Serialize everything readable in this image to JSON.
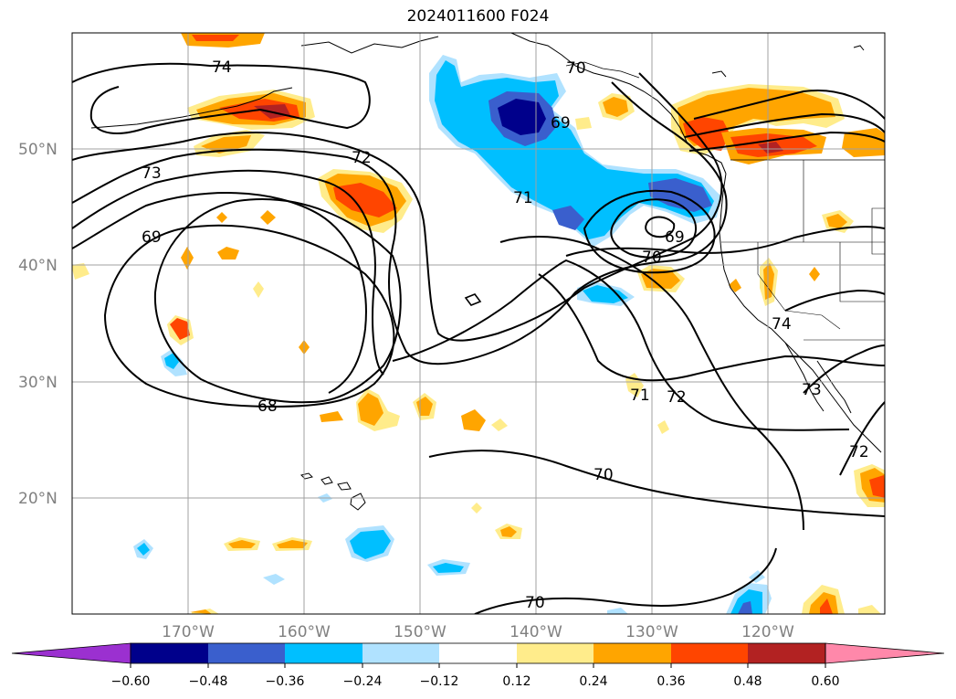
{
  "title": "2024011600 F024",
  "axes": {
    "lat_labels": [
      "50°N",
      "40°N",
      "30°N",
      "20°N"
    ],
    "lon_labels": [
      "170°W",
      "160°W",
      "150°W",
      "140°W",
      "130°W",
      "120°W"
    ]
  },
  "colorbar": {
    "colors": [
      "#9b30d0",
      "#00008b",
      "#3a5fcd",
      "#00bfff",
      "#b0e2ff",
      "#ffffff",
      "#ffec8b",
      "#ffa500",
      "#ff4500",
      "#b22222",
      "#ff88aa"
    ],
    "tick_labels": [
      "−0.60",
      "−0.48",
      "−0.36",
      "−0.24",
      "−0.12",
      "0.12",
      "0.24",
      "0.36",
      "0.48",
      "0.60"
    ]
  },
  "contour_labels": [
    "74",
    "73",
    "72",
    "69",
    "70",
    "69",
    "71",
    "69",
    "70",
    "68",
    "74",
    "73",
    "71",
    "72",
    "70",
    "70",
    "72"
  ],
  "shading_colors": {
    "pale_yellow": "#ffec8b",
    "orange": "#ffa500",
    "red_orange": "#ff4500",
    "dark_red": "#b22222",
    "light_blue": "#b0e2ff",
    "deep_sky": "#00bfff",
    "royal_blue": "#3a5fcd",
    "navy": "#00008b"
  }
}
